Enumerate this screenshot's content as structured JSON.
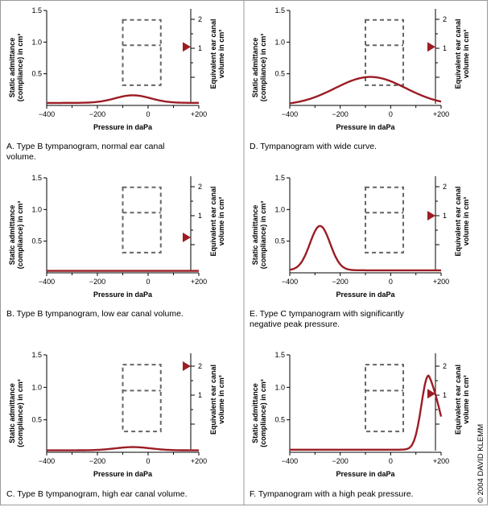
{
  "chart_data": [
    {
      "type": "line",
      "caption": "A. Type B tympanogram, normal ear canal volume.",
      "xlabel": "Pressure in daPa",
      "ylabel": [
        "Static admittance",
        "(compliance) in cm³"
      ],
      "right_label": [
        "Equivalent ear canal",
        "volume in cm³"
      ],
      "xlim": [
        -400,
        200
      ],
      "ylim": [
        0,
        1.5
      ],
      "x_ticks": [
        "−400",
        "−200",
        "0",
        "+200"
      ],
      "y_ticks": [
        "0.5",
        "1.0",
        "1.5"
      ],
      "right_ticks": [
        "1",
        "2"
      ],
      "ear_canal_volume": 1.05,
      "curve": {
        "baseline": 0.04,
        "peak_pressure": -60,
        "peak_height": 0.12,
        "width": 70
      }
    },
    {
      "type": "line",
      "caption": "B. Type B tympanogram, low ear canal volume.",
      "xlabel": "Pressure in daPa",
      "ylabel": [
        "Static admittance",
        "(compliance) in cm³"
      ],
      "right_label": [
        "Equivalent ear canal",
        "volume in cm³"
      ],
      "xlim": [
        -400,
        200
      ],
      "ylim": [
        0,
        1.5
      ],
      "x_ticks": [
        "−400",
        "−200",
        "0",
        "+200"
      ],
      "y_ticks": [
        "0.5",
        "1.0",
        "1.5"
      ],
      "right_ticks": [
        "1",
        "2"
      ],
      "ear_canal_volume": 0.25,
      "curve": {
        "baseline": 0.03,
        "peak_pressure": -60,
        "peak_height": 0.0,
        "width": 70
      }
    },
    {
      "type": "line",
      "caption": "C. Type B tympanogram, high ear canal volume.",
      "xlabel": "Pressure in daPa",
      "ylabel": [
        "Static admittance",
        "(compliance) in cm³"
      ],
      "right_label": [
        "Equivalent ear canal",
        "volume in cm³"
      ],
      "xlim": [
        -400,
        200
      ],
      "ylim": [
        0,
        1.5
      ],
      "x_ticks": [
        "−400",
        "−200",
        "0",
        "+200"
      ],
      "y_ticks": [
        "0.5",
        "1.0",
        "1.5"
      ],
      "right_ticks": [
        "1",
        "2"
      ],
      "ear_canal_volume": 2.0,
      "curve": {
        "baseline": 0.03,
        "peak_pressure": -60,
        "peak_height": 0.05,
        "width": 70
      }
    },
    {
      "type": "line",
      "caption": "D. Tympanogram with wide curve.",
      "xlabel": "Pressure in daPa",
      "ylabel": [
        "Static admittance",
        "(compliance) in cm³"
      ],
      "right_label": [
        "Equivalent ear canal",
        "volume in cm³"
      ],
      "xlim": [
        -400,
        200
      ],
      "ylim": [
        0,
        1.5
      ],
      "x_ticks": [
        "−400",
        "−200",
        "0",
        "+200"
      ],
      "y_ticks": [
        "0.5",
        "1.0",
        "1.5"
      ],
      "right_ticks": [
        "1",
        "2"
      ],
      "ear_canal_volume": 1.05,
      "curve": {
        "baseline": 0.0,
        "peak_pressure": -80,
        "peak_height": 0.45,
        "width": 140
      }
    },
    {
      "type": "line",
      "caption": "E. Type C tympanogram with significantly negative peak pressure.",
      "xlabel": "Pressure in daPa",
      "ylabel": [
        "Static admittance",
        "(compliance) in cm³"
      ],
      "right_label": [
        "Equivalent ear canal",
        "volume in cm³"
      ],
      "xlim": [
        -400,
        200
      ],
      "ylim": [
        0,
        1.5
      ],
      "x_ticks": [
        "−400",
        "−200",
        "0",
        "+200"
      ],
      "y_ticks": [
        "0.5",
        "1.0",
        "1.5"
      ],
      "right_ticks": [
        "1",
        "2"
      ],
      "ear_canal_volume": 1.0,
      "curve": {
        "baseline": 0.04,
        "peak_pressure": -280,
        "peak_height": 0.7,
        "width": 40
      }
    },
    {
      "type": "line",
      "caption": "F. Tympanogram with a high peak pressure.",
      "xlabel": "Pressure in daPa",
      "ylabel": [
        "Static admittance",
        "(compliance) in cm³"
      ],
      "right_label": [
        "Equivalent ear canal",
        "volume in cm³"
      ],
      "xlim": [
        -400,
        200
      ],
      "ylim": [
        0,
        1.5
      ],
      "x_ticks": [
        "−400",
        "−200",
        "0",
        "+200"
      ],
      "y_ticks": [
        "0.5",
        "1.0",
        "1.5"
      ],
      "right_ticks": [
        "1",
        "2"
      ],
      "ear_canal_volume": 1.05,
      "curve": {
        "baseline": 0.04,
        "peak_pressure": 150,
        "peak_height": 1.14,
        "width": 28,
        "end_value": 0.55
      }
    }
  ],
  "copyright": "© 2004  DAVID KLEMM",
  "colors": {
    "curve": "#9b1d24",
    "marker": "#9b1d24",
    "dash": "#666666"
  }
}
